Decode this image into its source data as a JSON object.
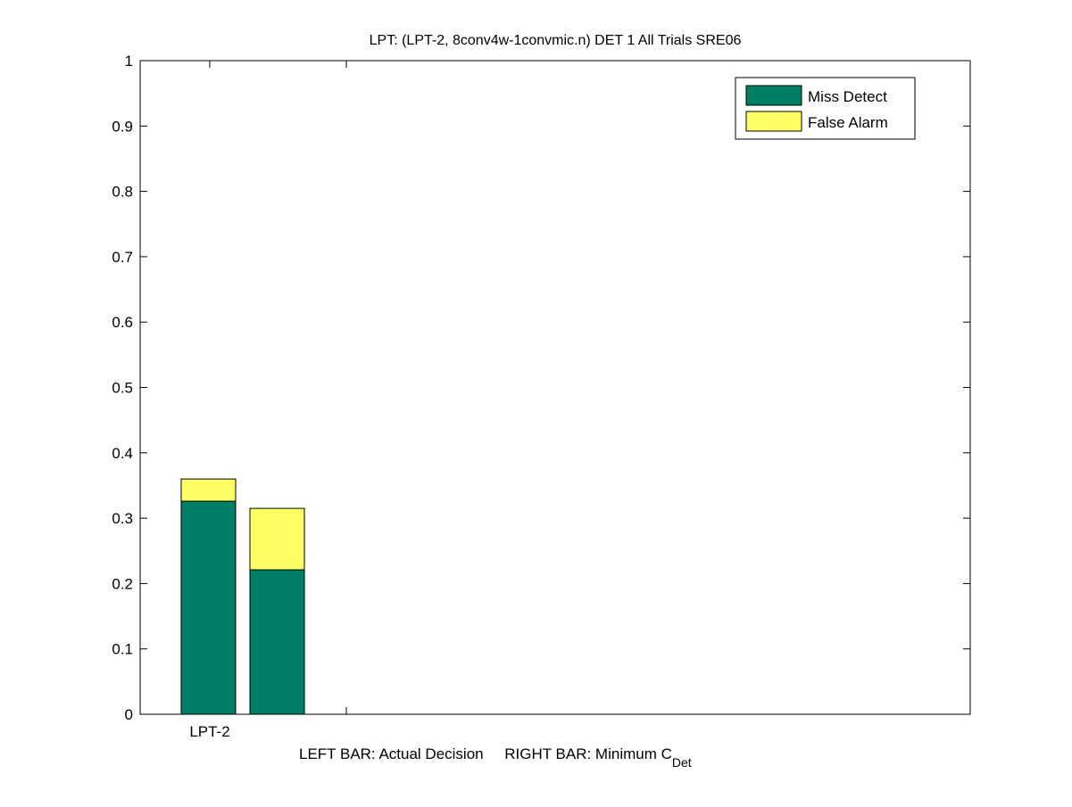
{
  "chart_data": {
    "type": "bar",
    "stacked": true,
    "title": "LPT: (LPT-2, 8conv4w-1convmic.n) DET 1 All Trials SRE06",
    "categories": [
      "LPT-2"
    ],
    "xticks": [
      "LPT-2",
      ""
    ],
    "xlabel": "LEFT BAR: Actual Decision     RIGHT BAR: Minimum C",
    "xlabel_subscript": "Det",
    "ylabel": "",
    "ylim": [
      0,
      1
    ],
    "yticks": [
      "0",
      "0.1",
      "0.2",
      "0.3",
      "0.4",
      "0.5",
      "0.6",
      "0.7",
      "0.8",
      "0.9",
      "1"
    ],
    "bars": [
      {
        "label": "Actual Decision",
        "miss_detect": 0.326,
        "false_alarm": 0.034
      },
      {
        "label": "Minimum C_Det",
        "miss_detect": 0.221,
        "false_alarm": 0.094
      }
    ],
    "series": [
      {
        "name": "Miss Detect",
        "color": "#007f66"
      },
      {
        "name": "False Alarm",
        "color": "#ffff66"
      }
    ],
    "legend_position": "top-right",
    "grid": false
  }
}
